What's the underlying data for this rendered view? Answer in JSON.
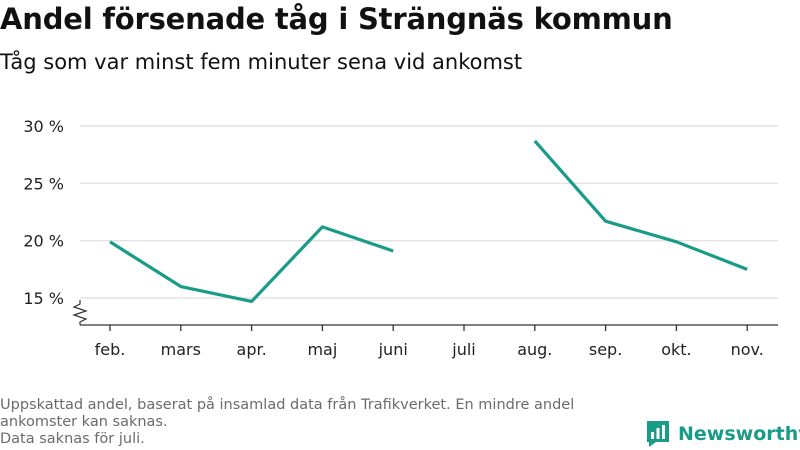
{
  "header": {
    "title": "Andel försenade tåg i Strängnäs kommun",
    "subtitle": "Tåg som var minst fem minuter sena vid ankomst"
  },
  "footer": {
    "note_line1": "Uppskattad andel, baserat på insamlad data från Trafikverket. En mindre andel ankomster kan saknas.",
    "note_line2": "Data saknas för juli."
  },
  "brand": {
    "name": "Newsworthy",
    "color": "#199b88",
    "icon": "bar-chart-icon"
  },
  "chart_data": {
    "type": "line",
    "categories": [
      "feb.",
      "mars",
      "apr.",
      "maj",
      "juni",
      "juli",
      "aug.",
      "sep.",
      "okt.",
      "nov."
    ],
    "series": [
      {
        "values": [
          19.9,
          16.0,
          14.7,
          21.2,
          19.1,
          null,
          28.7,
          21.7,
          19.9,
          17.5
        ]
      }
    ],
    "y_ticks": [
      15,
      20,
      25,
      30
    ],
    "y_tick_suffix": " %",
    "ylim": [
      13,
      31.5
    ],
    "axis_break": true,
    "grid": "horizontal",
    "line_color": "#199b88",
    "grid_color": "#dddddd",
    "axis_color": "#333333"
  }
}
